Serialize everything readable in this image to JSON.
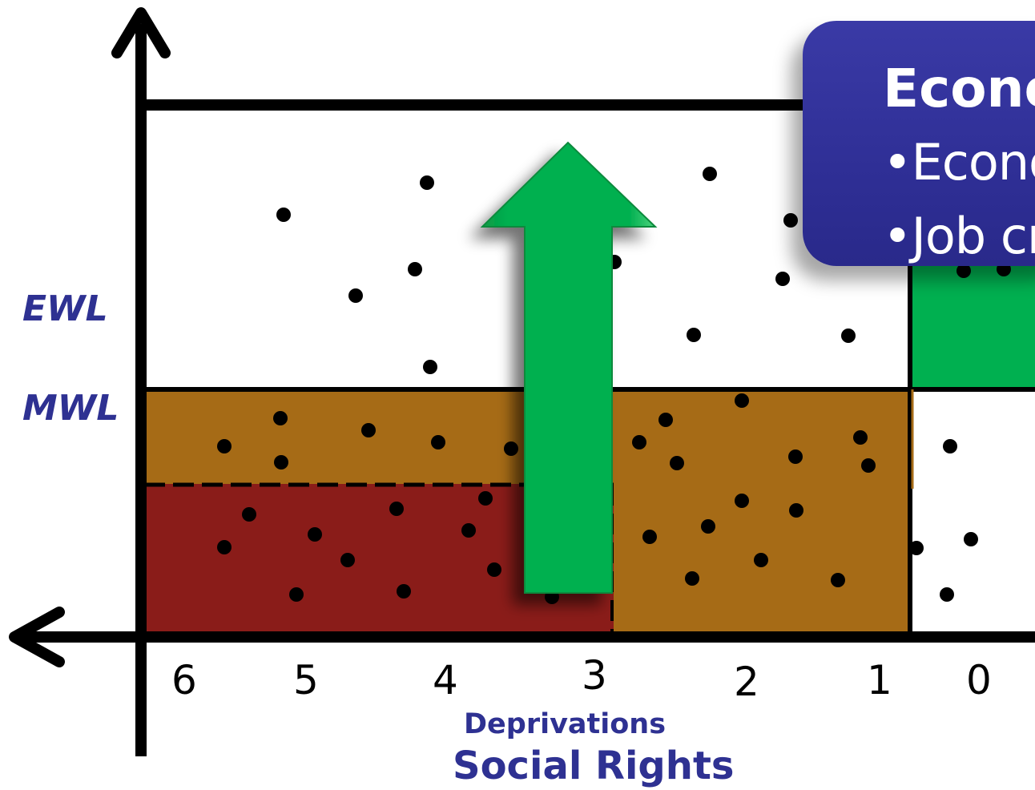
{
  "levels": {
    "ewl_label": "EWL",
    "mwl_label": "MWL"
  },
  "x_axis": {
    "ticks": [
      "6",
      "5",
      "4",
      "3",
      "2",
      "1",
      "0"
    ],
    "subtitle": "Deprivations",
    "title": "Social Rights"
  },
  "callout": {
    "title": "Econo",
    "items": [
      "•Econo",
      "•Job cr"
    ]
  },
  "colors": {
    "moderate_zone": "#a66b16",
    "extreme_zone": "#8a1c19",
    "upper_zone": "#00b050",
    "arrow": "#00b050",
    "callout": "#2e3192",
    "label_text": "#2e3192"
  },
  "icons": {
    "arrow": "up-arrow-icon"
  }
}
